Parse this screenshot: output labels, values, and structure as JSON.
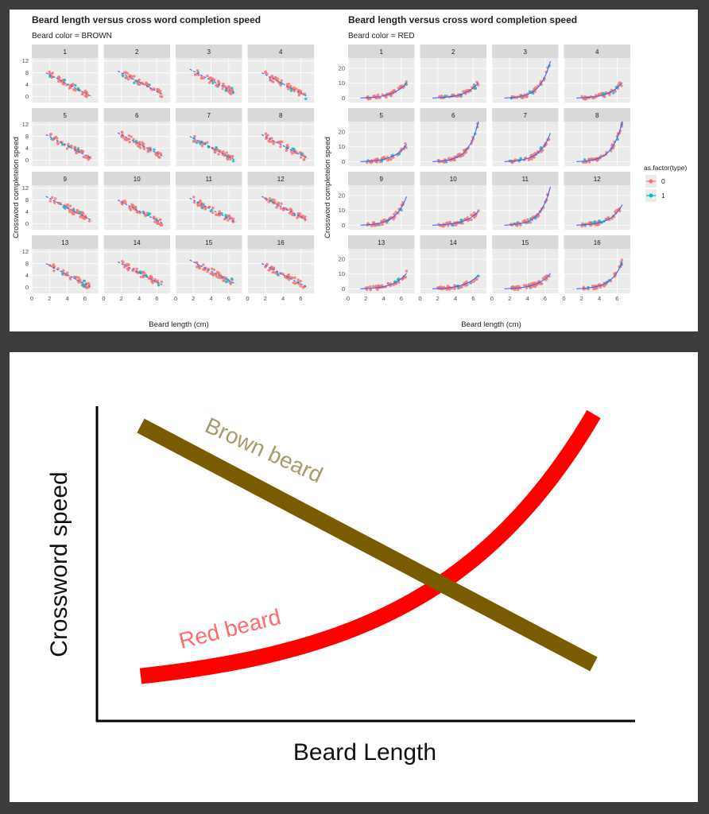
{
  "chart_data": [
    {
      "type": "scatter",
      "title": "Beard length versus cross word completion speed",
      "subtitle": "Beard color = BROWN",
      "xlabel": "Beard length (cm)",
      "ylabel": "Crossword completeion speed",
      "facets": [
        "1",
        "2",
        "3",
        "4",
        "5",
        "6",
        "7",
        "8",
        "9",
        "10",
        "11",
        "12",
        "13",
        "14",
        "15",
        "16"
      ],
      "xlim": [
        0,
        7.5
      ],
      "ylim": [
        -2,
        13
      ],
      "xticks": [
        0,
        2,
        4,
        6
      ],
      "yticks": [
        0,
        4,
        8,
        12
      ],
      "trend": "linear",
      "fit_line": {
        "x": [
          2,
          6.5
        ],
        "y": [
          8,
          1
        ]
      }
    },
    {
      "type": "scatter",
      "title": "Beard length versus cross word completion speed",
      "subtitle": "Beard color = RED",
      "xlabel": "Beard length (cm)",
      "ylabel": "Crossword completeion speed",
      "facets": [
        "1",
        "2",
        "3",
        "4",
        "5",
        "6",
        "7",
        "8",
        "9",
        "10",
        "11",
        "12",
        "13",
        "14",
        "15",
        "16"
      ],
      "xlim": [
        0,
        7.5
      ],
      "ylim": [
        -3,
        27
      ],
      "xticks": [
        0,
        2,
        4,
        6
      ],
      "yticks": [
        0,
        10,
        20
      ],
      "trend": "exponential",
      "legend": {
        "title": "as.factor(type)",
        "entries": [
          "0",
          "1"
        ],
        "colors": [
          "#f8766d",
          "#00bfc4"
        ],
        "placement": "right"
      },
      "facet_max_y": [
        10,
        10,
        23,
        10,
        11,
        25,
        18,
        25,
        18,
        9,
        24,
        13,
        10,
        9,
        10,
        17
      ]
    },
    {
      "type": "line",
      "xlabel": "Beard Length",
      "ylabel": "Crossword speed",
      "series": [
        {
          "name": "Brown beard",
          "color": "#7a5c00",
          "x": [
            0,
            10
          ],
          "y": [
            9,
            1
          ]
        },
        {
          "name": "Red beard",
          "color": "#ff0000",
          "x": [
            0,
            2,
            4,
            6,
            8,
            9,
            10
          ],
          "y": [
            0.6,
            1.1,
            2.0,
            3.4,
            5.6,
            7.3,
            9.4
          ]
        }
      ]
    }
  ],
  "colors": {
    "grid_bg": "#ebebeb",
    "strip_bg": "#d9d9d9",
    "point0": "#f8766d",
    "point1": "#00bfc4",
    "fit": "#3366ff"
  }
}
